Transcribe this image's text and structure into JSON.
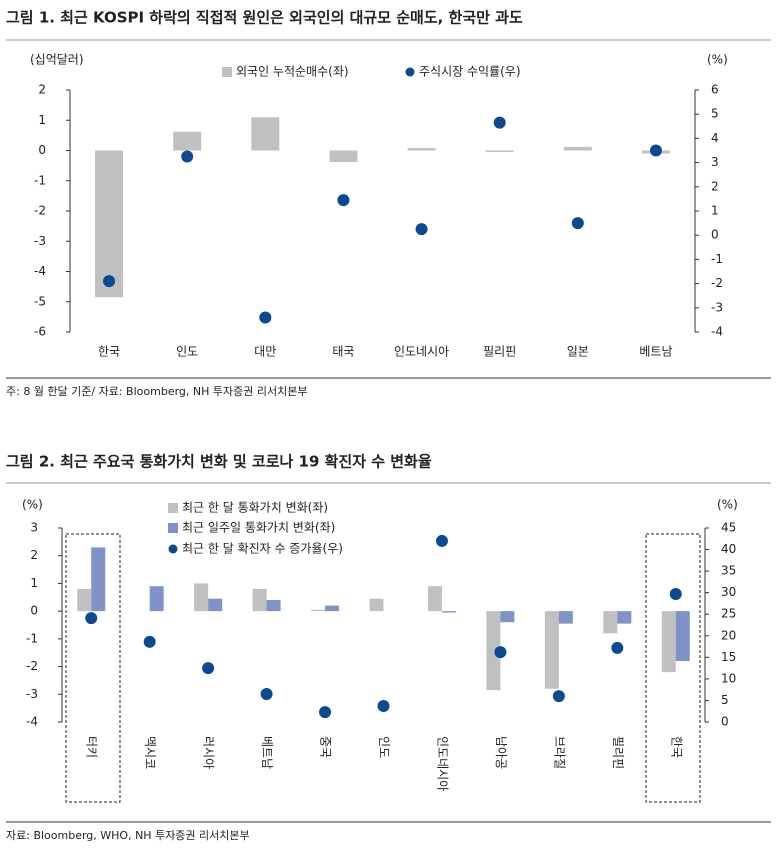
{
  "chart_data": [
    {
      "type": "bar",
      "title": "그림 1. 최근 KOSPI 하락의 직접적 원인은 외국인의 대규모 순매도, 한국만 과도",
      "y_label": "(십억달러)",
      "y2_label": "(%)",
      "categories": [
        "한국",
        "인도",
        "대만",
        "태국",
        "인도네시아",
        "필리핀",
        "일본",
        "베트남"
      ],
      "series": [
        {
          "name": "외국인 누적순매수(좌)",
          "type": "bar",
          "color": "#c0c0c0",
          "values": [
            -4.85,
            0.62,
            1.1,
            -0.38,
            0.08,
            -0.05,
            0.12,
            -0.1
          ]
        },
        {
          "name": "주식시장 수익률(우)",
          "type": "scatter",
          "axis": "y2",
          "color": "#0b4a8f",
          "values": [
            -1.9,
            3.25,
            -3.4,
            1.45,
            0.25,
            4.65,
            0.5,
            3.5
          ]
        }
      ],
      "ylim": [
        -6,
        2
      ],
      "yticks": [
        -6,
        -5,
        -4,
        -3,
        -2,
        -1,
        0,
        1,
        2
      ],
      "y2lim": [
        -4,
        6
      ],
      "y2ticks": [
        -4,
        -3,
        -2,
        -1,
        0,
        1,
        2,
        3,
        4,
        5,
        6
      ],
      "note": "주: 8 월 한달 기준/ 자료: Bloomberg, NH 투자증권 리서치본부"
    },
    {
      "type": "bar",
      "title": "그림 2. 최근 주요국 통화가치 변화 및 코로나 19 확진자 수 변화율",
      "y_label": "(%)",
      "y2_label": "(%)",
      "categories": [
        "터키",
        "멕시코",
        "러시아",
        "베트남",
        "중국",
        "인도",
        "인도네시아",
        "남아공",
        "브라질",
        "필리핀",
        "한국"
      ],
      "series": [
        {
          "name": "최근 한 달 통화가치 변화(좌)",
          "type": "bar",
          "color": "#c0c0c0",
          "values": [
            0.8,
            0,
            1.0,
            0.8,
            0.05,
            0.45,
            0.9,
            -2.85,
            -2.8,
            -0.8,
            -2.2
          ]
        },
        {
          "name": "최근 일주일 통화가치 변화(좌)",
          "type": "bar",
          "color": "#7f93c8",
          "values": [
            2.3,
            0.9,
            0.45,
            0.4,
            0.2,
            0,
            -0.05,
            -0.4,
            -0.45,
            -0.45,
            -1.8
          ]
        },
        {
          "name": "최근 한 달 확진자 수 증가율(우)",
          "type": "scatter",
          "axis": "y2",
          "color": "#0b4a8f",
          "values": [
            24.1,
            18.6,
            12.5,
            6.5,
            2.3,
            3.7,
            42,
            16.2,
            6,
            17.2,
            29.7
          ]
        }
      ],
      "ylim": [
        -4,
        3
      ],
      "yticks": [
        -4,
        -3,
        -2,
        -1,
        0,
        1,
        2,
        3
      ],
      "y2lim": [
        0,
        45
      ],
      "y2ticks": [
        0,
        5,
        10,
        15,
        20,
        25,
        30,
        35,
        40,
        45
      ],
      "note": "자료: Bloomberg, WHO, NH 투자증권 리서치본부"
    }
  ]
}
